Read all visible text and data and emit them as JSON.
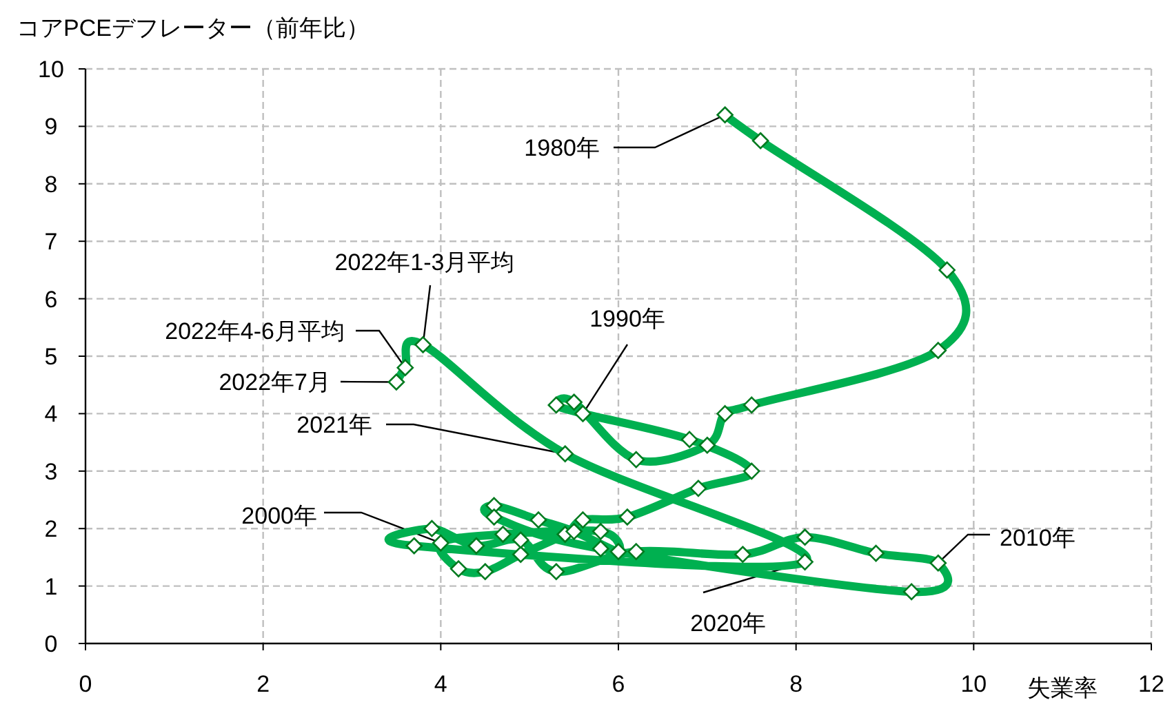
{
  "chart_data": {
    "type": "line",
    "ylabel": "コアPCEデフレーター（前年比）",
    "xlabel": "失業率",
    "xlim": [
      0,
      12
    ],
    "xticks": [
      0,
      2,
      4,
      6,
      8,
      10,
      12
    ],
    "ylim": [
      0,
      10
    ],
    "yticks": [
      0,
      1,
      2,
      3,
      4,
      5,
      6,
      7,
      8,
      9,
      10
    ],
    "grid": true,
    "marker": "diamond",
    "line_style": "solid",
    "series": [
      {
        "color": "#00b050",
        "x": [
          7.2,
          7.6,
          9.7,
          9.6,
          7.5,
          7.2,
          7.0,
          6.2,
          5.5,
          5.3,
          5.6,
          6.8,
          7.5,
          6.9,
          6.1,
          5.6,
          5.4,
          4.9,
          4.5,
          4.2,
          4.0,
          4.7,
          5.8,
          6.0,
          5.5,
          5.1,
          4.6,
          4.6,
          5.8,
          9.3,
          9.6,
          8.9,
          8.1,
          7.4,
          6.2,
          5.3,
          4.9,
          4.4,
          3.9,
          3.7,
          8.1,
          5.4,
          3.8,
          3.6,
          3.5
        ],
        "values": [
          9.2,
          8.75,
          6.5,
          5.1,
          4.15,
          4.0,
          3.45,
          3.2,
          4.2,
          4.15,
          4.0,
          3.55,
          3.0,
          2.7,
          2.2,
          2.15,
          1.9,
          1.55,
          1.25,
          1.3,
          1.75,
          1.9,
          1.95,
          1.6,
          1.95,
          2.15,
          2.4,
          2.2,
          1.65,
          0.9,
          1.4,
          1.57,
          1.85,
          1.55,
          1.6,
          1.25,
          1.8,
          1.7,
          2.0,
          1.7,
          1.42,
          3.3,
          5.2,
          4.8,
          4.55
        ]
      }
    ],
    "annotations": [
      {
        "text": "1980年",
        "x": 7.2,
        "y": 9.2
      },
      {
        "text": "1990年",
        "x": 5.6,
        "y": 4.0
      },
      {
        "text": "2000年",
        "x": 4.0,
        "y": 1.75
      },
      {
        "text": "2010年",
        "x": 9.6,
        "y": 1.4
      },
      {
        "text": "2020年",
        "x": 8.1,
        "y": 1.42
      },
      {
        "text": "2021年",
        "x": 5.4,
        "y": 3.3
      },
      {
        "text": "2022年1-3月平均",
        "x": 3.8,
        "y": 5.2
      },
      {
        "text": "2022年4-6月平均",
        "x": 3.6,
        "y": 4.8
      },
      {
        "text": "2022年7月",
        "x": 3.5,
        "y": 4.55
      }
    ]
  }
}
